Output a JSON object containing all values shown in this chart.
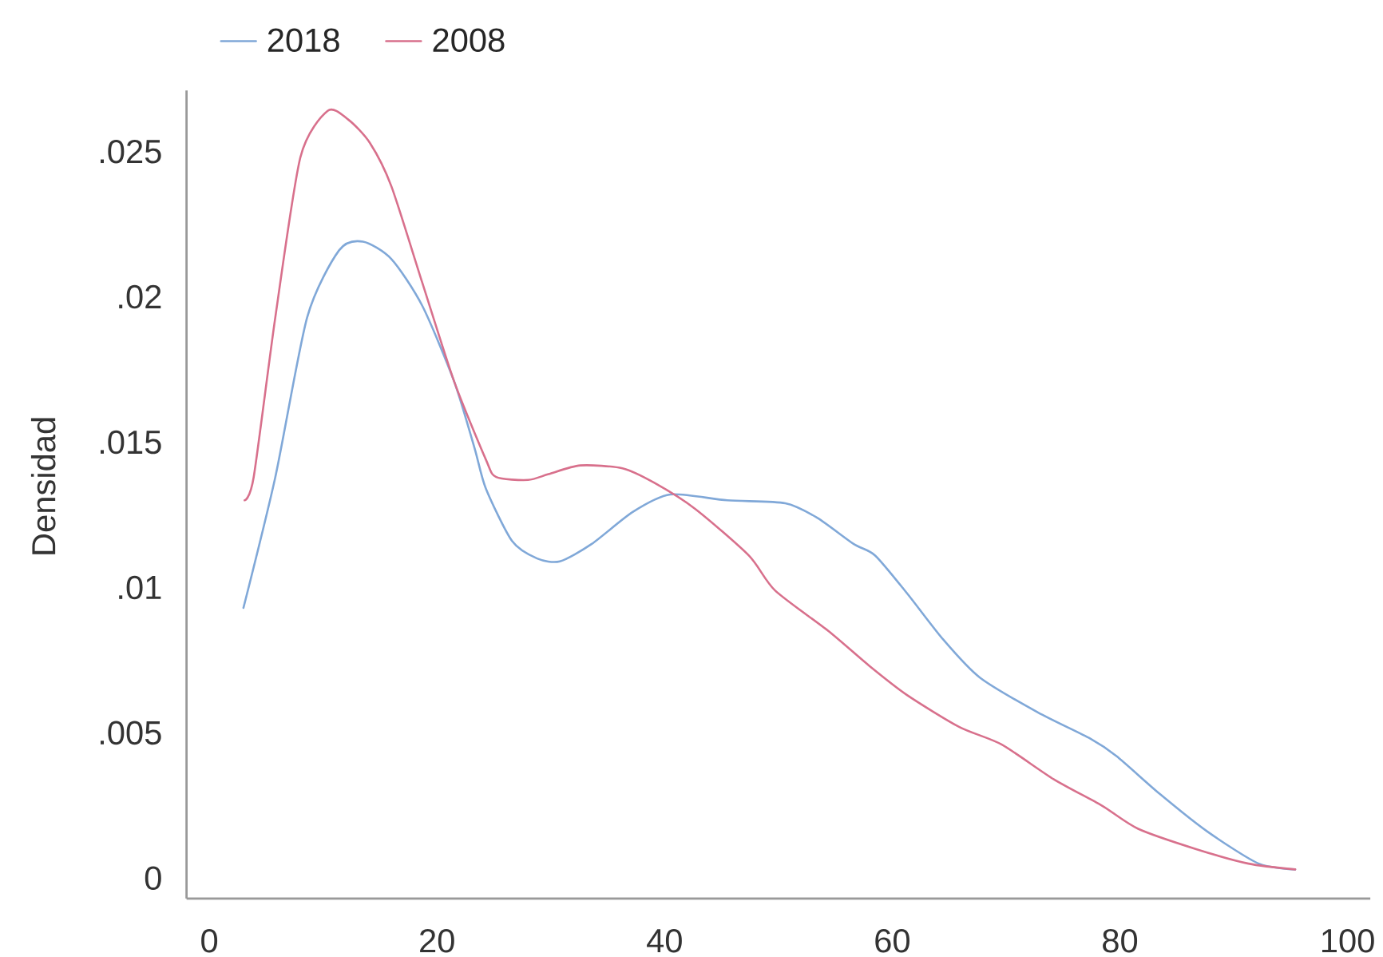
{
  "chart_data": {
    "type": "line",
    "ylabel": "Densidad",
    "legend": "top left",
    "xlim": [
      -2,
      102
    ],
    "xticks": [
      0,
      20,
      40,
      60,
      80,
      100
    ],
    "ylim": [
      -0.0007,
      0.0271
    ],
    "yticks": [
      0,
      {
        "value": 0.005,
        "label": ".005"
      },
      {
        "value": 0.01,
        "label": ".01"
      },
      {
        "value": 0.015,
        "label": ".015"
      },
      {
        "value": 0.02,
        "label": ".02"
      },
      {
        "value": 0.025,
        "label": ".025"
      }
    ],
    "series": [
      {
        "name": "2018",
        "color": "#80a8d8",
        "x": [
          3,
          5.8,
          8.6,
          11.4,
          13.5,
          16,
          18.7,
          21.5,
          23.3,
          24.3,
          26.6,
          28.8,
          30.8,
          33.6,
          37.2,
          40.5,
          45.5,
          50.6,
          53.4,
          56.6,
          58.5,
          61.3,
          64.5,
          67.7,
          72.8,
          77.4,
          79.7,
          83.5,
          87.7,
          92.2,
          95.4
        ],
        "values": [
          0.0093,
          0.0138,
          0.0193,
          0.0216,
          0.0219,
          0.0213,
          0.0197,
          0.0171,
          0.0148,
          0.0134,
          0.0116,
          0.011,
          0.0109,
          0.0115,
          0.0126,
          0.0132,
          0.013,
          0.0129,
          0.0124,
          0.0115,
          0.0111,
          0.0098,
          0.0082,
          0.0069,
          0.0057,
          0.0048,
          0.0042,
          0.0029,
          0.0016,
          0.0005,
          0.0003
        ]
      },
      {
        "name": "2008",
        "color": "#d8708c",
        "x": [
          3.1,
          3.9,
          5.8,
          8,
          10.4,
          12.2,
          14.1,
          16,
          18.7,
          21.5,
          24.3,
          25.2,
          28,
          29.8,
          32.6,
          36.3,
          39.1,
          42.7,
          47.4,
          49.7,
          54.4,
          58,
          61.3,
          65.9,
          69.6,
          74.2,
          78.4,
          81.6,
          86.7,
          91.3,
          95.4
        ],
        "values": [
          0.013,
          0.0138,
          0.0193,
          0.0248,
          0.0264,
          0.0261,
          0.0253,
          0.0238,
          0.0205,
          0.0171,
          0.0144,
          0.0138,
          0.0137,
          0.0139,
          0.0142,
          0.0141,
          0.0136,
          0.0127,
          0.0111,
          0.0099,
          0.0085,
          0.0073,
          0.0063,
          0.0052,
          0.0046,
          0.0034,
          0.0025,
          0.0017,
          0.001,
          0.0005,
          0.0003
        ]
      }
    ]
  }
}
